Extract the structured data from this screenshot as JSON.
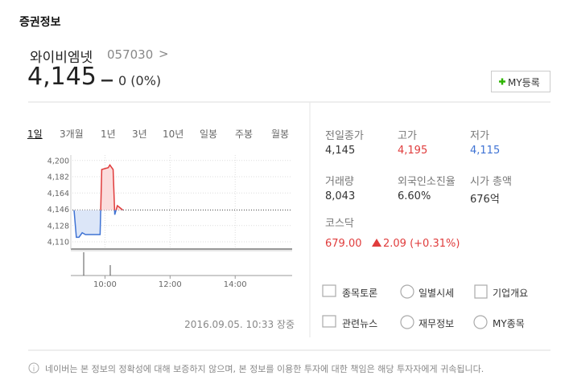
{
  "header": {
    "title": "증권정보"
  },
  "stock": {
    "name": "와이비엠넷",
    "code": "057030",
    "arrow": ">",
    "price": "4,145",
    "change": "0 (0%)"
  },
  "my_button": {
    "label": "MY등록"
  },
  "tabs": [
    "1일",
    "3개월",
    "1년",
    "3년",
    "10년",
    "일봉",
    "주봉",
    "월봉"
  ],
  "chart": {
    "type": "line",
    "x": [
      9.05,
      9.12,
      9.2,
      9.3,
      9.4,
      9.5,
      9.6,
      9.7,
      9.85,
      9.9,
      10.1,
      10.15,
      10.25,
      10.3,
      10.38,
      10.45,
      10.55
    ],
    "values": [
      4145,
      4115,
      4115,
      4120,
      4118,
      4118,
      4118,
      4118,
      4118,
      4190,
      4192,
      4195,
      4190,
      4140,
      4150,
      4148,
      4145
    ],
    "reference": 4145,
    "xlim": [
      9,
      15.75
    ],
    "xticks": [
      {
        "value": 10,
        "label": "10:00"
      },
      {
        "value": 12,
        "label": "12:00"
      },
      {
        "value": 14,
        "label": "14:00"
      }
    ],
    "ylim": [
      4102,
      4206
    ],
    "yticks": [
      {
        "value": 4110,
        "label": "4,110"
      },
      {
        "value": 4128,
        "label": "4,128"
      },
      {
        "value": 4146,
        "label": "4,146"
      },
      {
        "value": 4164,
        "label": "4,164"
      },
      {
        "value": 4182,
        "label": "4,182"
      },
      {
        "value": 4200,
        "label": "4,200"
      }
    ],
    "up_color": "#e03c3c",
    "down_color": "#3f73d4",
    "grid": true
  },
  "timestamp": "2016.09.05. 10:33 장중",
  "stats": [
    {
      "label": "전일종가",
      "value": "4,145"
    },
    {
      "label": "고가",
      "value": "4,195"
    },
    {
      "label": "저가",
      "value": "4,115"
    },
    {
      "label": "거래량",
      "value": "8,043"
    },
    {
      "label": "외국인소진율",
      "value": "6.60%"
    },
    {
      "label": "시가 총액",
      "value": "676억"
    }
  ],
  "index": {
    "name": "코스닥",
    "value": "679.00",
    "change": "2.09 (+0.31%)"
  },
  "links": [
    "종목토론",
    "일별시세",
    "기업개요",
    "관련뉴스",
    "재무정보",
    "MY종목"
  ],
  "disclaimer": "네이버는 본 정보의 정확성에 대해 보증하지 않으며, 본 정보를 이용한 투자에 대한 책임은 해당 투자자에게 귀속됩니다."
}
